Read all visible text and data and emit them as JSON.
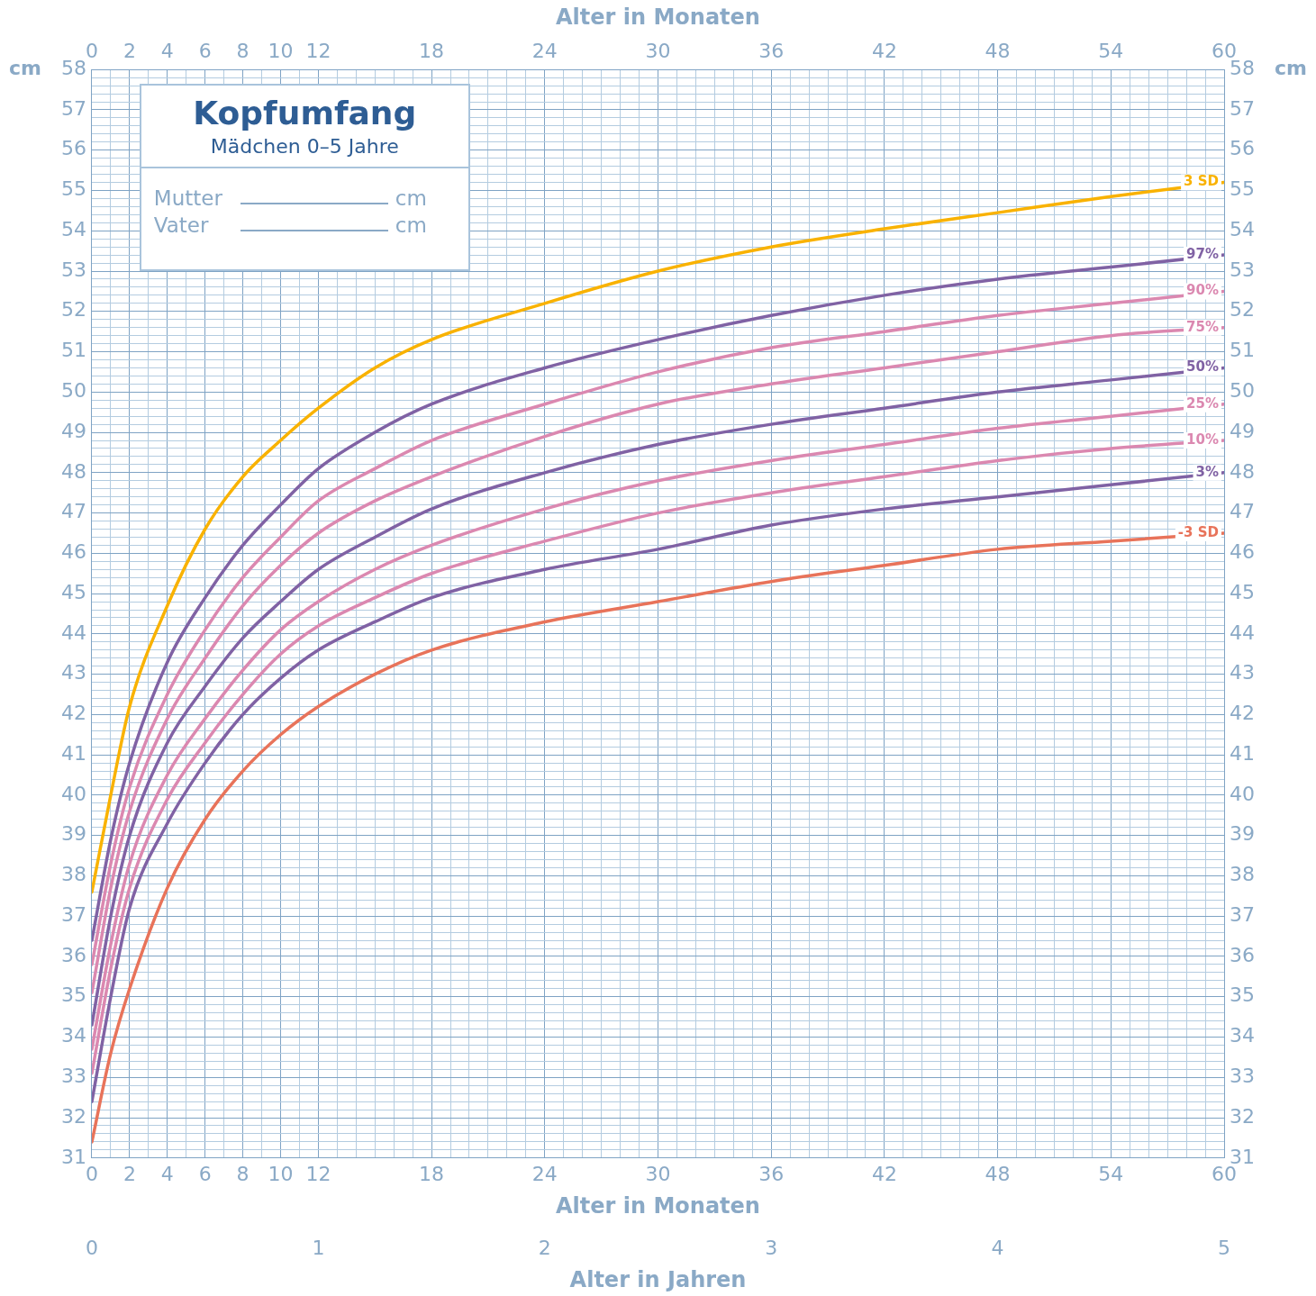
{
  "chart_data": {
    "type": "line",
    "title": "Kopfumfang",
    "subtitle": "Mädchen 0–5 Jahre",
    "annotations": [
      "Mutter",
      "cm",
      "Vater",
      "cm",
      "0",
      "1",
      "2",
      "3",
      "4",
      "5",
      "Alter in Jahren"
    ],
    "xlabel": "Alter in Monaten",
    "x2label": "Alter in Monaten",
    "ylabel": "cm",
    "y2label": "cm",
    "x": [
      0,
      1,
      2,
      4,
      6,
      8,
      10,
      12,
      15,
      18,
      24,
      30,
      36,
      42,
      48,
      54,
      60
    ],
    "series": [
      {
        "name": "3 SD",
        "color": "#f9b200",
        "values": [
          37.6,
          40.0,
          42.2,
          44.7,
          46.6,
          47.9,
          48.8,
          49.6,
          50.6,
          51.3,
          52.2,
          53.0,
          53.6,
          54.05,
          54.45,
          54.85,
          55.2
        ]
      },
      {
        "name": "97%",
        "color": "#8062a4",
        "values": [
          36.4,
          38.9,
          40.8,
          43.3,
          44.9,
          46.2,
          47.2,
          48.1,
          49.0,
          49.7,
          50.6,
          51.3,
          51.9,
          52.4,
          52.8,
          53.1,
          53.4
        ]
      },
      {
        "name": "90%",
        "color": "#db88b0",
        "values": [
          35.8,
          38.3,
          40.2,
          42.5,
          44.1,
          45.4,
          46.4,
          47.3,
          48.1,
          48.8,
          49.7,
          50.5,
          51.1,
          51.5,
          51.9,
          52.2,
          52.5
        ]
      },
      {
        "name": "75%",
        "color": "#db88b0",
        "values": [
          35.1,
          37.7,
          39.6,
          41.9,
          43.4,
          44.7,
          45.7,
          46.5,
          47.3,
          47.9,
          48.9,
          49.7,
          50.2,
          50.6,
          51.0,
          51.4,
          51.6
        ]
      },
      {
        "name": "50%",
        "color": "#8062a4",
        "values": [
          34.3,
          37.0,
          39.0,
          41.3,
          42.7,
          43.9,
          44.8,
          45.6,
          46.4,
          47.1,
          48.0,
          48.7,
          49.2,
          49.6,
          50.0,
          50.3,
          50.6
        ]
      },
      {
        "name": "25%",
        "color": "#db88b0",
        "values": [
          33.7,
          36.3,
          38.3,
          40.5,
          41.9,
          43.1,
          44.1,
          44.8,
          45.6,
          46.2,
          47.1,
          47.8,
          48.3,
          48.7,
          49.1,
          49.4,
          49.7
        ]
      },
      {
        "name": "10%",
        "color": "#db88b0",
        "values": [
          33.1,
          35.7,
          37.7,
          39.9,
          41.3,
          42.5,
          43.5,
          44.2,
          44.9,
          45.5,
          46.3,
          47.0,
          47.5,
          47.9,
          48.3,
          48.6,
          48.8
        ]
      },
      {
        "name": "3%",
        "color": "#8062a4",
        "values": [
          32.4,
          35.0,
          37.2,
          39.3,
          40.8,
          42.0,
          42.9,
          43.6,
          44.3,
          44.9,
          45.6,
          46.1,
          46.7,
          47.1,
          47.4,
          47.7,
          48.0
        ]
      },
      {
        "name": "-3 SD",
        "color": "#e8735a",
        "values": [
          31.4,
          33.6,
          35.2,
          37.7,
          39.4,
          40.6,
          41.5,
          42.2,
          43.0,
          43.6,
          44.3,
          44.8,
          45.3,
          45.7,
          46.1,
          46.3,
          46.5
        ]
      }
    ],
    "xlim": [
      0,
      60
    ],
    "xticks": [
      0,
      {
        "value": 1,
        "label": null
      },
      2,
      {
        "value": 3,
        "label": null
      },
      4,
      {
        "value": 5,
        "label": null
      },
      6,
      {
        "value": 7,
        "label": null
      },
      8,
      {
        "value": 9,
        "label": null
      },
      10,
      {
        "value": 11,
        "label": null
      },
      12,
      {
        "value": 13,
        "label": null
      },
      {
        "value": 14,
        "label": null
      },
      {
        "value": 15,
        "label": null
      },
      {
        "value": 16,
        "label": null
      },
      {
        "value": 17,
        "label": null
      },
      18,
      {
        "value": 19,
        "label": null
      },
      {
        "value": 20,
        "label": null
      },
      {
        "value": 21,
        "label": null
      },
      {
        "value": 22,
        "label": null
      },
      {
        "value": 23,
        "label": null
      },
      24,
      {
        "value": 25,
        "label": null
      },
      {
        "value": 26,
        "label": null
      },
      {
        "value": 27,
        "label": null
      },
      {
        "value": 28,
        "label": null
      },
      {
        "value": 29,
        "label": null
      },
      30,
      {
        "value": 31,
        "label": null
      },
      {
        "value": 32,
        "label": null
      },
      {
        "value": 33,
        "label": null
      },
      {
        "value": 34,
        "label": null
      },
      {
        "value": 35,
        "label": null
      },
      36,
      {
        "value": 37,
        "label": null
      },
      {
        "value": 38,
        "label": null
      },
      {
        "value": 39,
        "label": null
      },
      {
        "value": 40,
        "label": null
      },
      {
        "value": 41,
        "label": null
      },
      42,
      {
        "value": 43,
        "label": null
      },
      {
        "value": 44,
        "label": null
      },
      {
        "value": 45,
        "label": null
      },
      {
        "value": 46,
        "label": null
      },
      {
        "value": 47,
        "label": null
      },
      48,
      {
        "value": 49,
        "label": null
      },
      {
        "value": 50,
        "label": null
      },
      {
        "value": 51,
        "label": null
      },
      {
        "value": 52,
        "label": null
      },
      {
        "value": 53,
        "label": null
      },
      54,
      {
        "value": 55,
        "label": null
      },
      {
        "value": 56,
        "label": null
      },
      {
        "value": 57,
        "label": null
      },
      {
        "value": 58,
        "label": null
      },
      {
        "value": 59,
        "label": null
      },
      60
    ],
    "x2lim": [
      0,
      60
    ],
    "x2ticks": [
      0,
      2,
      4,
      6,
      8,
      10,
      12,
      18,
      24,
      30,
      36,
      42,
      48,
      54,
      60
    ],
    "ylim": [
      31,
      58
    ],
    "yticks": [
      31,
      {
        "value": 31.2,
        "label": null
      },
      {
        "value": 31.4,
        "label": null
      },
      {
        "value": 31.6,
        "label": null
      },
      {
        "value": 31.8,
        "label": null
      },
      32,
      {
        "value": 32.2,
        "label": null
      },
      {
        "value": 32.4,
        "label": null
      },
      {
        "value": 32.6,
        "label": null
      },
      {
        "value": 32.8,
        "label": null
      },
      33,
      {
        "value": 33.2,
        "label": null
      },
      {
        "value": 33.4,
        "label": null
      },
      {
        "value": 33.6,
        "label": null
      },
      {
        "value": 33.8,
        "label": null
      },
      34,
      {
        "value": 34.2,
        "label": null
      },
      {
        "value": 34.4,
        "label": null
      },
      {
        "value": 34.6,
        "label": null
      },
      {
        "value": 34.8,
        "label": null
      },
      35,
      {
        "value": 35.2,
        "label": null
      },
      {
        "value": 35.4,
        "label": null
      },
      {
        "value": 35.6,
        "label": null
      },
      {
        "value": 35.8,
        "label": null
      },
      36,
      {
        "value": 36.2,
        "label": null
      },
      {
        "value": 36.4,
        "label": null
      },
      {
        "value": 36.6,
        "label": null
      },
      {
        "value": 36.8,
        "label": null
      },
      37,
      {
        "value": 37.2,
        "label": null
      },
      {
        "value": 37.4,
        "label": null
      },
      {
        "value": 37.6,
        "label": null
      },
      {
        "value": 37.8,
        "label": null
      },
      38,
      {
        "value": 38.2,
        "label": null
      },
      {
        "value": 38.4,
        "label": null
      },
      {
        "value": 38.6,
        "label": null
      },
      {
        "value": 38.8,
        "label": null
      },
      39,
      {
        "value": 39.2,
        "label": null
      },
      {
        "value": 39.4,
        "label": null
      },
      {
        "value": 39.6,
        "label": null
      },
      {
        "value": 39.8,
        "label": null
      },
      40,
      {
        "value": 40.2,
        "label": null
      },
      {
        "value": 40.4,
        "label": null
      },
      {
        "value": 40.6,
        "label": null
      },
      {
        "value": 40.8,
        "label": null
      },
      41,
      {
        "value": 41.2,
        "label": null
      },
      {
        "value": 41.4,
        "label": null
      },
      {
        "value": 41.6,
        "label": null
      },
      {
        "value": 41.8,
        "label": null
      },
      42,
      {
        "value": 42.2,
        "label": null
      },
      {
        "value": 42.4,
        "label": null
      },
      {
        "value": 42.6,
        "label": null
      },
      {
        "value": 42.8,
        "label": null
      },
      43,
      {
        "value": 43.2,
        "label": null
      },
      {
        "value": 43.4,
        "label": null
      },
      {
        "value": 43.6,
        "label": null
      },
      {
        "value": 43.8,
        "label": null
      },
      44,
      {
        "value": 44.2,
        "label": null
      },
      {
        "value": 44.4,
        "label": null
      },
      {
        "value": 44.6,
        "label": null
      },
      {
        "value": 44.8,
        "label": null
      },
      45,
      {
        "value": 45.2,
        "label": null
      },
      {
        "value": 45.4,
        "label": null
      },
      {
        "value": 45.6,
        "label": null
      },
      {
        "value": 45.8,
        "label": null
      },
      46,
      {
        "value": 46.2,
        "label": null
      },
      {
        "value": 46.4,
        "label": null
      },
      {
        "value": 46.6,
        "label": null
      },
      {
        "value": 46.8,
        "label": null
      },
      47,
      {
        "value": 47.2,
        "label": null
      },
      {
        "value": 47.4,
        "label": null
      },
      {
        "value": 47.6,
        "label": null
      },
      {
        "value": 47.8,
        "label": null
      },
      48,
      {
        "value": 48.2,
        "label": null
      },
      {
        "value": 48.4,
        "label": null
      },
      {
        "value": 48.6,
        "label": null
      },
      {
        "value": 48.8,
        "label": null
      },
      49,
      {
        "value": 49.2,
        "label": null
      },
      {
        "value": 49.4,
        "label": null
      },
      {
        "value": 49.6,
        "label": null
      },
      {
        "value": 49.8,
        "label": null
      },
      50,
      {
        "value": 50.2,
        "label": null
      },
      {
        "value": 50.4,
        "label": null
      },
      {
        "value": 50.6,
        "label": null
      },
      {
        "value": 50.8,
        "label": null
      },
      51,
      {
        "value": 51.2,
        "label": null
      },
      {
        "value": 51.4,
        "label": null
      },
      {
        "value": 51.6,
        "label": null
      },
      {
        "value": 51.8,
        "label": null
      },
      52,
      {
        "value": 52.2,
        "label": null
      },
      {
        "value": 52.4,
        "label": null
      },
      {
        "value": 52.6,
        "label": null
      },
      {
        "value": 52.8,
        "label": null
      },
      53,
      {
        "value": 53.2,
        "label": null
      },
      {
        "value": 53.4,
        "label": null
      },
      {
        "value": 53.6,
        "label": null
      },
      {
        "value": 53.8,
        "label": null
      },
      54,
      {
        "value": 54.2,
        "label": null
      },
      {
        "value": 54.4,
        "label": null
      },
      {
        "value": 54.6,
        "label": null
      },
      {
        "value": 54.8,
        "label": null
      },
      55,
      {
        "value": 55.2,
        "label": null
      },
      {
        "value": 55.4,
        "label": null
      },
      {
        "value": 55.6,
        "label": null
      },
      {
        "value": 55.8,
        "label": null
      },
      56,
      {
        "value": 56.2,
        "label": null
      },
      {
        "value": 56.4,
        "label": null
      },
      {
        "value": 56.6,
        "label": null
      },
      {
        "value": 56.8,
        "label": null
      },
      57,
      {
        "value": 57.2,
        "label": null
      },
      {
        "value": 57.4,
        "label": null
      },
      {
        "value": 57.6,
        "label": null
      },
      {
        "value": 57.8,
        "label": null
      },
      58
    ],
    "y2lim": [
      31,
      58
    ],
    "y2ticks": [
      31,
      32,
      33,
      34,
      35,
      36,
      37,
      38,
      39,
      40,
      41,
      42,
      43,
      44,
      45,
      46,
      47,
      48,
      49,
      50,
      51,
      52,
      53,
      54,
      55,
      56,
      57,
      58
    ],
    "grid": true,
    "legend": false
  }
}
